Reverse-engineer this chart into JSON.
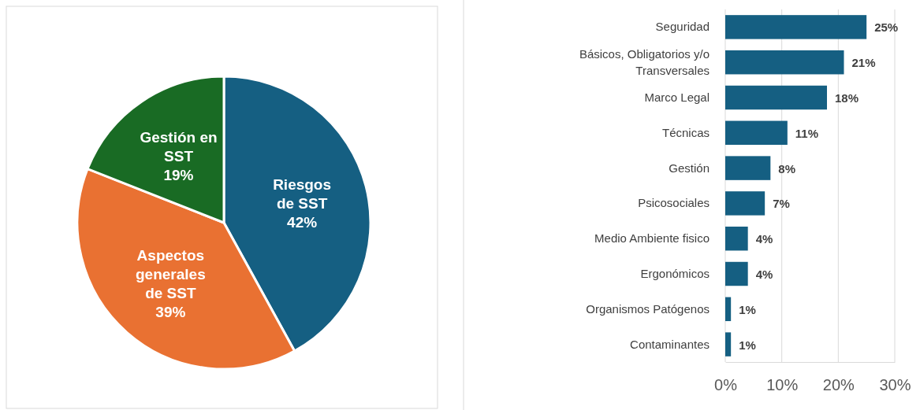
{
  "chart_data": [
    {
      "type": "pie",
      "categories": [
        "Riesgos de SST",
        "Aspectos generales de SST",
        "Gestión en SST"
      ],
      "values": [
        42,
        39,
        19
      ],
      "colors": [
        "#155f82",
        "#e97132",
        "#196b24"
      ],
      "value_labels": [
        "42%",
        "39%",
        "19%"
      ]
    },
    {
      "type": "bar",
      "orientation": "horizontal",
      "categories": [
        "Seguridad",
        "Básicos, Obligatorios y/o Transversales",
        "Marco Legal",
        "Técnicas",
        "Gestión",
        "Psicosociales",
        "Medio Ambiente fisico",
        "Ergonómicos",
        "Organismos Patógenos",
        "Contaminantes"
      ],
      "values": [
        25,
        21,
        18,
        11,
        8,
        7,
        4,
        4,
        1,
        1
      ],
      "color": "#155f82",
      "value_labels": [
        "25%",
        "21%",
        "18%",
        "11%",
        "8%",
        "7%",
        "4%",
        "4%",
        "1%",
        "1%"
      ],
      "xlim": [
        0,
        30
      ],
      "xticks": [
        {
          "value": 0,
          "label": "0%"
        },
        {
          "value": 10,
          "label": "10%"
        },
        {
          "value": 20,
          "label": "20%"
        },
        {
          "value": 30,
          "label": "30%"
        }
      ],
      "grid": "x"
    }
  ]
}
